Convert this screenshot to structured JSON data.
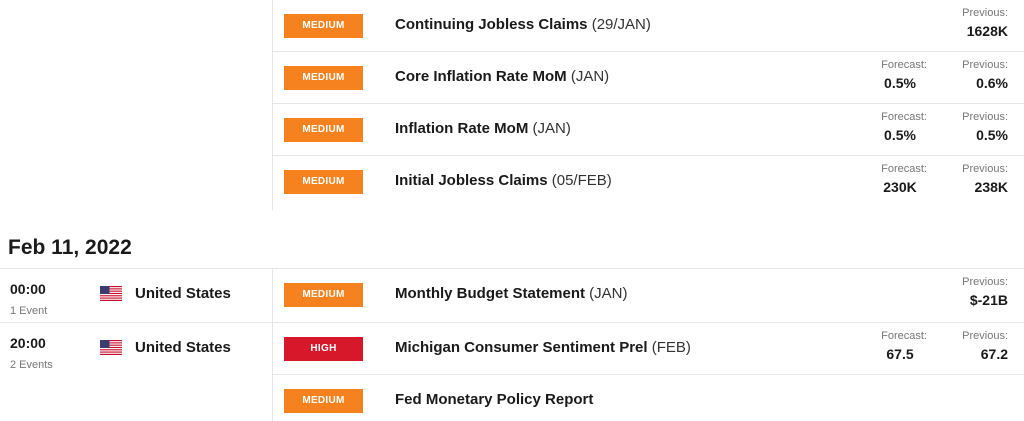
{
  "upper_events": [
    {
      "impact": "MEDIUM",
      "impact_level": "medium",
      "name": "Continuing Jobless Claims",
      "period": "(29/JAN)",
      "forecast_label": "",
      "forecast": "",
      "previous_label": "Previous:",
      "previous": "1628K"
    },
    {
      "impact": "MEDIUM",
      "impact_level": "medium",
      "name": "Core Inflation Rate MoM",
      "period": "(JAN)",
      "forecast_label": "Forecast:",
      "forecast": "0.5%",
      "previous_label": "Previous:",
      "previous": "0.6%"
    },
    {
      "impact": "MEDIUM",
      "impact_level": "medium",
      "name": "Inflation Rate MoM",
      "period": "(JAN)",
      "forecast_label": "Forecast:",
      "forecast": "0.5%",
      "previous_label": "Previous:",
      "previous": "0.5%"
    },
    {
      "impact": "MEDIUM",
      "impact_level": "medium",
      "name": "Initial Jobless Claims",
      "period": "(05/FEB)",
      "forecast_label": "Forecast:",
      "forecast": "230K",
      "previous_label": "Previous:",
      "previous": "238K"
    }
  ],
  "date_heading": "Feb 11, 2022",
  "time_groups": [
    {
      "time": "00:00",
      "events_count": "1 Event",
      "country": "United States",
      "flag": "us-flag-icon"
    },
    {
      "time": "20:00",
      "events_count": "2 Events",
      "country": "United States",
      "flag": "us-flag-icon"
    }
  ],
  "lower_events": [
    {
      "impact": "MEDIUM",
      "impact_level": "medium",
      "name": "Monthly Budget Statement",
      "period": "(JAN)",
      "forecast_label": "",
      "forecast": "",
      "previous_label": "Previous:",
      "previous": "$-21B"
    },
    {
      "impact": "HIGH",
      "impact_level": "high",
      "name": "Michigan Consumer Sentiment Prel",
      "period": "(FEB)",
      "forecast_label": "Forecast:",
      "forecast": "67.5",
      "previous_label": "Previous:",
      "previous": "67.2"
    },
    {
      "impact": "MEDIUM",
      "impact_level": "medium",
      "name": "Fed Monetary Policy Report",
      "period": "",
      "forecast_label": "",
      "forecast": "",
      "previous_label": "",
      "previous": ""
    }
  ],
  "colors": {
    "medium": "#f5821f",
    "high": "#d7182a"
  }
}
